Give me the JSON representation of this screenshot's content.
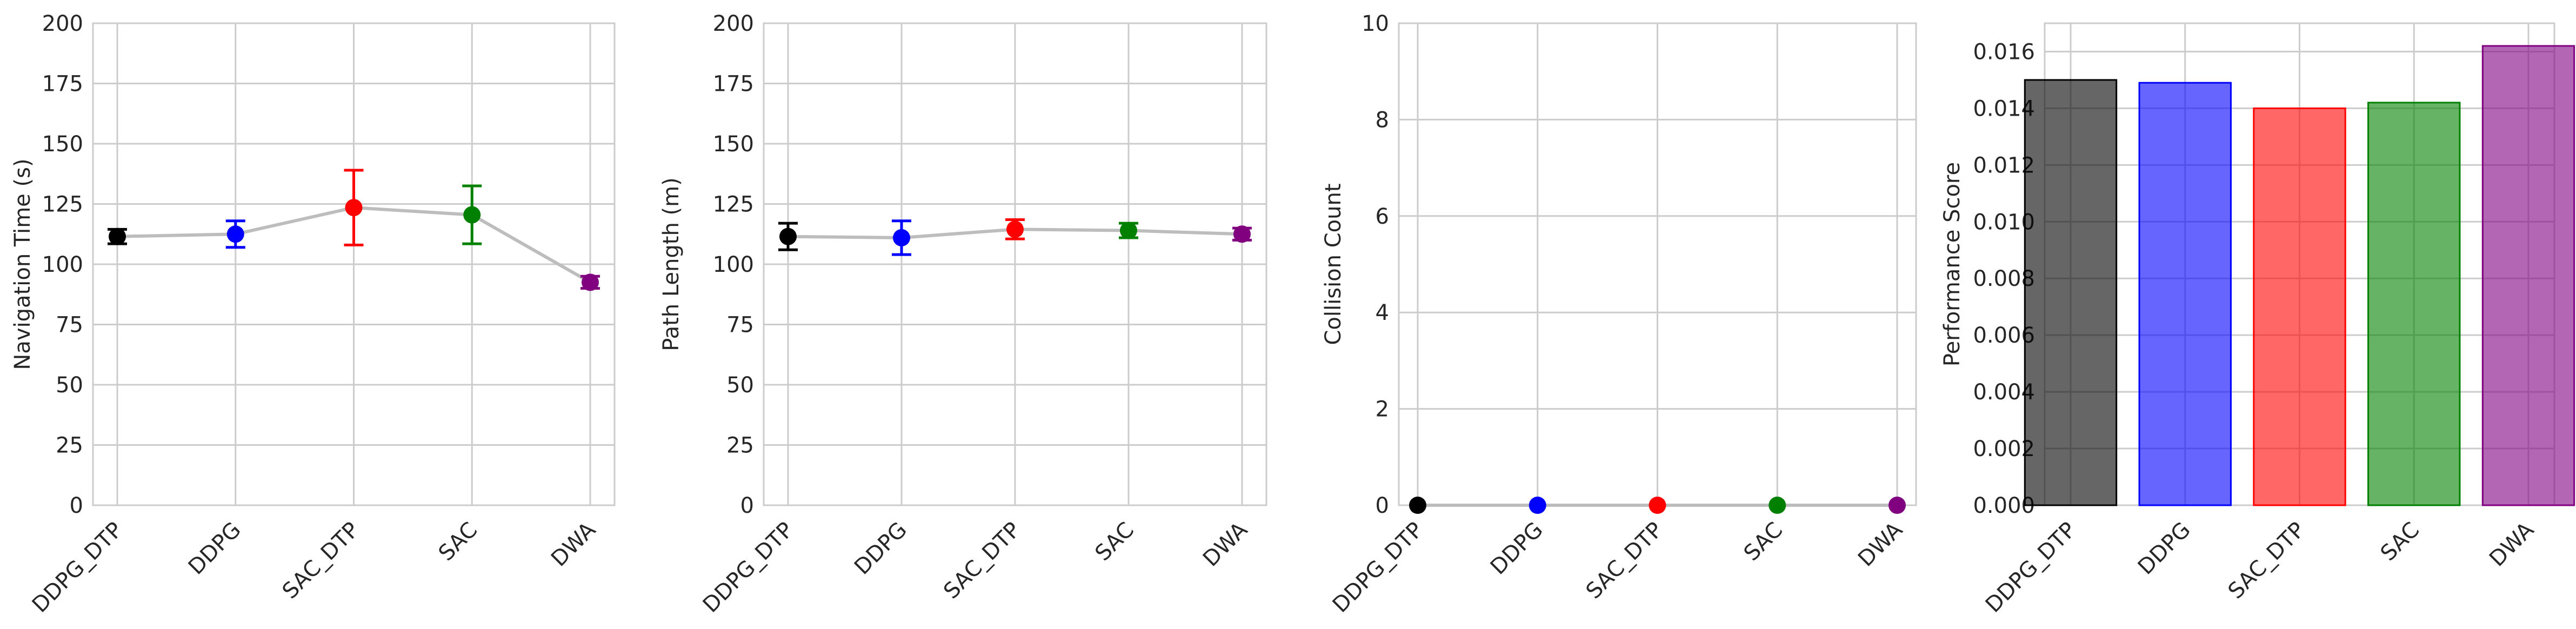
{
  "chart_data": [
    {
      "type": "errorbar-line",
      "ylabel": "Navigation Time (s)",
      "ylim": [
        0,
        200
      ],
      "yticks": [
        0,
        25,
        50,
        75,
        100,
        125,
        150,
        175,
        200
      ],
      "categories": [
        "DDPG_DTP",
        "DDPG",
        "SAC_DTP",
        "SAC",
        "DWA"
      ],
      "colors": [
        "#000000",
        "#0000ff",
        "#ff0000",
        "#008000",
        "#800080"
      ],
      "values": [
        111.5,
        112.5,
        123.5,
        120.5,
        92.5
      ],
      "errors": [
        3,
        5.5,
        15.5,
        12,
        2.5
      ],
      "grid": true
    },
    {
      "type": "errorbar-line",
      "ylabel": "Path Length (m)",
      "ylim": [
        0,
        200
      ],
      "yticks": [
        0,
        25,
        50,
        75,
        100,
        125,
        150,
        175,
        200
      ],
      "categories": [
        "DDPG_DTP",
        "DDPG",
        "SAC_DTP",
        "SAC",
        "DWA"
      ],
      "colors": [
        "#000000",
        "#0000ff",
        "#ff0000",
        "#008000",
        "#800080"
      ],
      "values": [
        111.5,
        111,
        114.5,
        114,
        112.5
      ],
      "errors": [
        5.5,
        7,
        4,
        3,
        2.5
      ],
      "grid": true
    },
    {
      "type": "errorbar-line",
      "ylabel": "Collision Count",
      "ylim": [
        0,
        10
      ],
      "yticks": [
        0,
        2,
        4,
        6,
        8,
        10
      ],
      "categories": [
        "DDPG_DTP",
        "DDPG",
        "SAC_DTP",
        "SAC",
        "DWA"
      ],
      "colors": [
        "#000000",
        "#0000ff",
        "#ff0000",
        "#008000",
        "#800080"
      ],
      "values": [
        0,
        0,
        0,
        0,
        0
      ],
      "errors": [
        0,
        0,
        0,
        0,
        0
      ],
      "grid": true
    },
    {
      "type": "bar",
      "ylabel": "Performance Score",
      "ylim": [
        0,
        0.017
      ],
      "yticks": [
        "0.000",
        "0.002",
        "0.004",
        "0.006",
        "0.008",
        "0.010",
        "0.012",
        "0.014",
        "0.016"
      ],
      "categories": [
        "DDPG_DTP",
        "DDPG",
        "SAC_DTP",
        "SAC",
        "DWA"
      ],
      "colors": [
        "#000000",
        "#0000ff",
        "#ff0000",
        "#008000",
        "#800080"
      ],
      "values": [
        0.015,
        0.0149,
        0.014,
        0.0142,
        0.0162
      ],
      "grid": true
    }
  ]
}
